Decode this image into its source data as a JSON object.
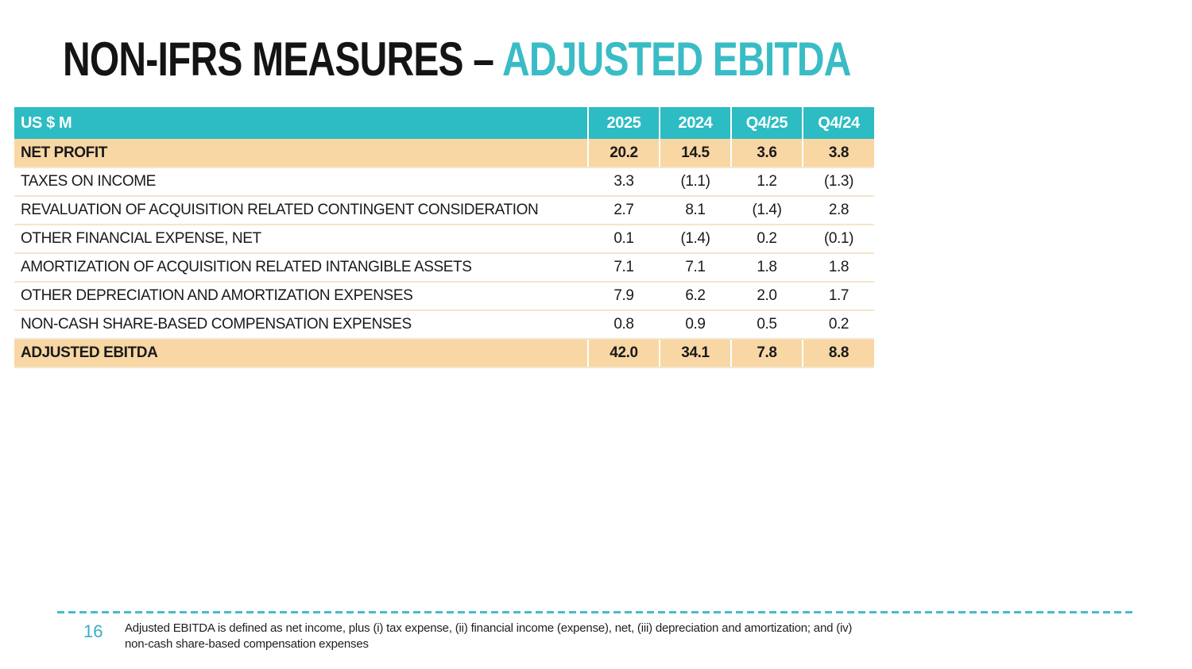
{
  "title": {
    "prefix": "NON-IFRS MEASURES – ",
    "accent": "ADJUSTED EBITDA"
  },
  "table": {
    "columns": [
      "US $ M",
      "2025",
      "2024",
      "Q4/25",
      "Q4/24"
    ],
    "rows": [
      {
        "label": "NET PROFIT",
        "values": [
          "20.2",
          "14.5",
          "3.6",
          "3.8"
        ],
        "highlight": true
      },
      {
        "label": "TAXES ON INCOME",
        "values": [
          "3.3",
          "(1.1)",
          "1.2",
          "(1.3)"
        ],
        "highlight": false
      },
      {
        "label": "REVALUATION OF ACQUISITION RELATED CONTINGENT CONSIDERATION",
        "values": [
          "2.7",
          "8.1",
          "(1.4)",
          "2.8"
        ],
        "highlight": false
      },
      {
        "label": "OTHER FINANCIAL EXPENSE, NET",
        "values": [
          "0.1",
          "(1.4)",
          "0.2",
          "(0.1)"
        ],
        "highlight": false
      },
      {
        "label": "AMORTIZATION OF ACQUISITION RELATED INTANGIBLE ASSETS",
        "values": [
          "7.1",
          "7.1",
          "1.8",
          "1.8"
        ],
        "highlight": false
      },
      {
        "label": "OTHER DEPRECIATION AND AMORTIZATION EXPENSES",
        "values": [
          "7.9",
          "6.2",
          "2.0",
          "1.7"
        ],
        "highlight": false
      },
      {
        "label": "NON-CASH SHARE-BASED COMPENSATION EXPENSES",
        "values": [
          "0.8",
          "0.9",
          "0.5",
          "0.2"
        ],
        "highlight": false
      },
      {
        "label": "ADJUSTED EBITDA",
        "values": [
          "42.0",
          "34.1",
          "7.8",
          "8.8"
        ],
        "highlight": true
      }
    ]
  },
  "footer": {
    "page_number": "16",
    "footnote": "Adjusted EBITDA is defined as net income, plus (i) tax expense, (ii) financial income (expense), net, (iii) depreciation and amortization; and (iv)\nnon-cash share-based compensation expenses"
  },
  "colors": {
    "header_teal": "#2dbcc3",
    "title_teal": "#3abcc6",
    "highlight_orange": "#f8d7a5",
    "row_separator": "#f3e6cb",
    "page_number_teal": "#39adc8",
    "dashed_line_teal": "#45bccb",
    "title_black": "#141414"
  },
  "chart_data": {
    "type": "table",
    "title": "NON-IFRS MEASURES – ADJUSTED EBITDA",
    "unit": "US $ M",
    "columns": [
      "US $ M",
      "2025",
      "2024",
      "Q4/25",
      "Q4/24"
    ],
    "rows": [
      [
        "NET PROFIT",
        20.2,
        14.5,
        3.6,
        3.8
      ],
      [
        "TAXES ON INCOME",
        3.3,
        -1.1,
        1.2,
        -1.3
      ],
      [
        "REVALUATION OF ACQUISITION RELATED CONTINGENT CONSIDERATION",
        2.7,
        8.1,
        -1.4,
        2.8
      ],
      [
        "OTHER FINANCIAL EXPENSE, NET",
        0.1,
        -1.4,
        0.2,
        -0.1
      ],
      [
        "AMORTIZATION OF ACQUISITION RELATED INTANGIBLE ASSETS",
        7.1,
        7.1,
        1.8,
        1.8
      ],
      [
        "OTHER DEPRECIATION AND AMORTIZATION EXPENSES",
        7.9,
        6.2,
        2.0,
        1.7
      ],
      [
        "NON-CASH SHARE-BASED COMPENSATION EXPENSES",
        0.8,
        0.9,
        0.5,
        0.2
      ],
      [
        "ADJUSTED EBITDA",
        42.0,
        34.1,
        7.8,
        8.8
      ]
    ]
  }
}
